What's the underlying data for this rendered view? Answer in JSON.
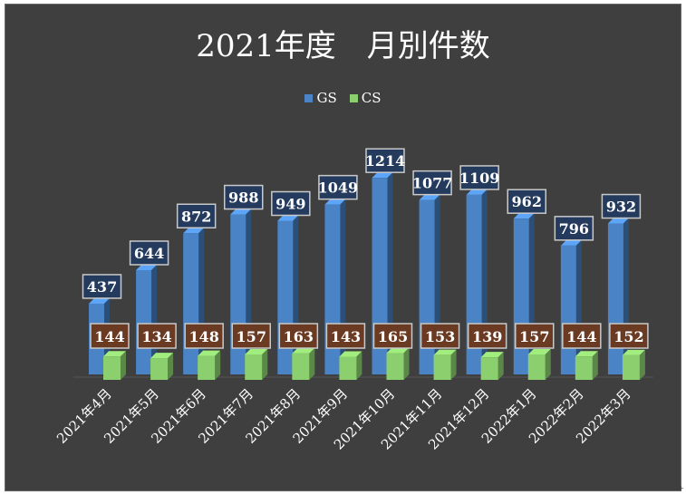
{
  "chart_data": {
    "type": "bar",
    "title": "2021年度　月別件数",
    "categories": [
      "2021年4月",
      "2021年5月",
      "2021年6月",
      "2021年7月",
      "2021年8月",
      "2021年9月",
      "2021年10月",
      "2021年11月",
      "2021年12月",
      "2022年1月",
      "2022年2月",
      "2022年3月"
    ],
    "series": [
      {
        "name": "GS",
        "values": [
          437,
          644,
          872,
          988,
          949,
          1049,
          1214,
          1077,
          1109,
          962,
          796,
          932
        ],
        "color": "#4a84c6",
        "label_bg": "#243b5e"
      },
      {
        "name": "CS",
        "values": [
          144,
          134,
          148,
          157,
          163,
          143,
          165,
          153,
          139,
          157,
          144,
          152
        ],
        "color": "#8ccf6e",
        "label_bg": "#6b3a22"
      }
    ],
    "ylim": [
      0,
      1214
    ],
    "grid": false,
    "legend_position": "top",
    "background": "#3f3f3f",
    "text_color": "#ffffff"
  }
}
